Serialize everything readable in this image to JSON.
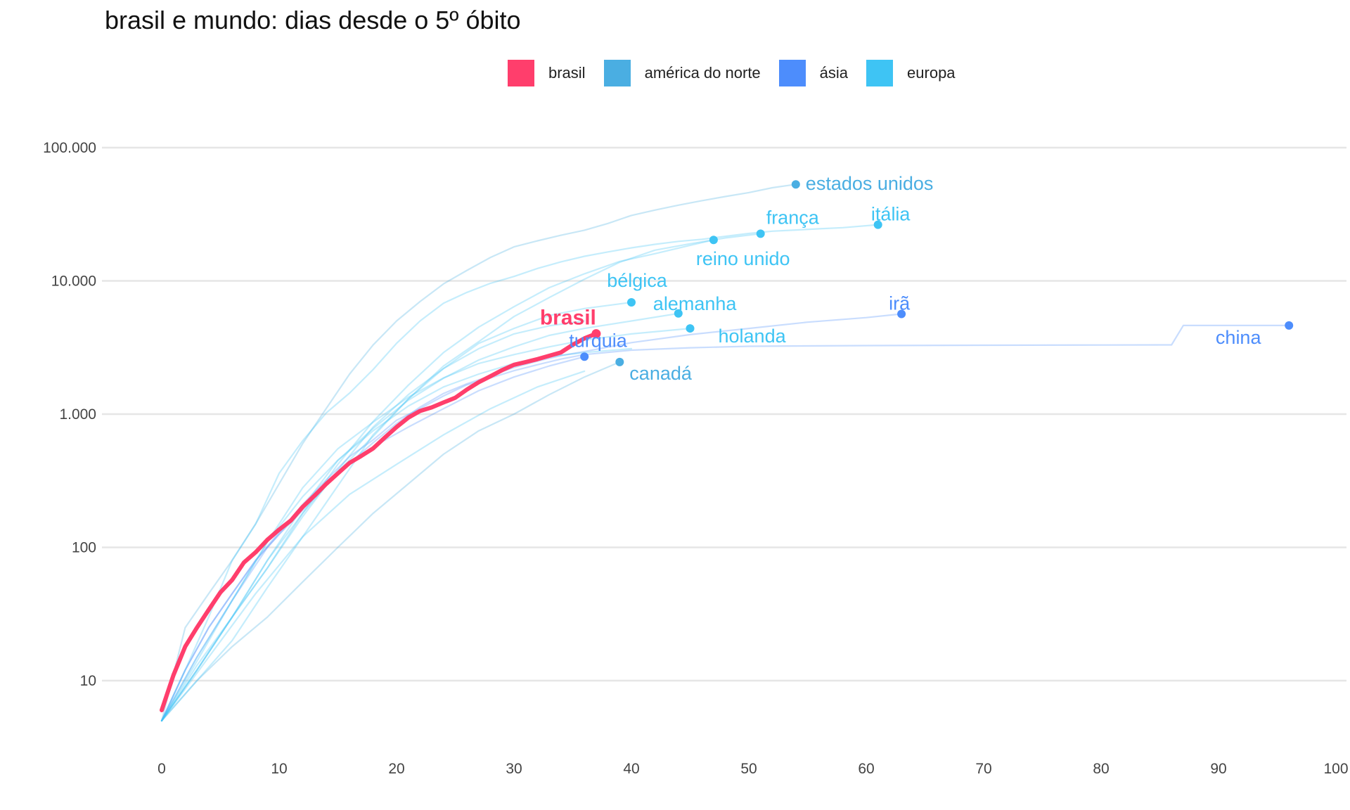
{
  "title": "brasil e mundo: dias desde o 5º óbito",
  "legend": [
    {
      "label": "brasil",
      "color": "#ff3e6c"
    },
    {
      "label": "américa do norte",
      "color": "#4aaee2"
    },
    {
      "label": "ásia",
      "color": "#4d8dfc"
    },
    {
      "label": "europa",
      "color": "#3ec4f4"
    }
  ],
  "chart_data": {
    "type": "line",
    "title": "brasil e mundo: dias desde o 5º óbito",
    "xlabel": "",
    "ylabel": "",
    "x_scale": "linear",
    "y_scale": "log10",
    "xlim": [
      0,
      100
    ],
    "ylim": [
      3.5,
      160000
    ],
    "x_ticks": [
      {
        "value": 0,
        "label": "0"
      },
      {
        "value": 10,
        "label": "10"
      },
      {
        "value": 20,
        "label": "20"
      },
      {
        "value": 30,
        "label": "30"
      },
      {
        "value": 40,
        "label": "40"
      },
      {
        "value": 50,
        "label": "50"
      },
      {
        "value": 60,
        "label": "60"
      },
      {
        "value": 70,
        "label": "70"
      },
      {
        "value": 80,
        "label": "80"
      },
      {
        "value": 90,
        "label": "90"
      },
      {
        "value": 100,
        "label": "100"
      }
    ],
    "y_ticks": [
      {
        "value": 10,
        "label": "10"
      },
      {
        "value": 100,
        "label": "100"
      },
      {
        "value": 1000,
        "label": "1.000"
      },
      {
        "value": 10000,
        "label": "10.000"
      },
      {
        "value": 100000,
        "label": "100.000"
      }
    ],
    "grid": "horizontal",
    "legend_position": "top",
    "series": [
      {
        "name": "brasil",
        "group": "brasil",
        "highlight": true,
        "x": [
          0,
          1,
          2,
          3,
          4,
          5,
          6,
          7,
          8,
          9,
          10,
          11,
          12,
          13,
          14,
          15,
          16,
          17,
          18,
          19,
          20,
          21,
          22,
          23,
          24,
          25,
          26,
          27,
          28,
          29,
          30,
          31,
          32,
          33,
          34,
          35,
          36,
          37
        ],
        "y": [
          6,
          11,
          18,
          25,
          34,
          46,
          57,
          77,
          92,
          114,
          136,
          159,
          201,
          244,
          299,
          359,
          431,
          486,
          553,
          667,
          800,
          941,
          1056,
          1124,
          1223,
          1328,
          1532,
          1736,
          1924,
          2141,
          2347,
          2462,
          2587,
          2741,
          2906,
          3313,
          3704,
          4016
        ],
        "end_label": "brasil"
      },
      {
        "name": "estados unidos",
        "group": "américa do norte",
        "x": [
          0,
          2,
          4,
          6,
          8,
          10,
          12,
          14,
          16,
          18,
          20,
          22,
          24,
          26,
          28,
          30,
          32,
          34,
          36,
          38,
          40,
          42,
          44,
          46,
          48,
          50,
          52,
          54
        ],
        "y": [
          5,
          25,
          45,
          80,
          150,
          300,
          600,
          1100,
          2000,
          3300,
          5000,
          7000,
          9500,
          12000,
          15000,
          18000,
          20000,
          22000,
          24000,
          27000,
          31000,
          34000,
          37000,
          40000,
          43000,
          46000,
          50000,
          53000
        ],
        "end_label": "estados unidos"
      },
      {
        "name": "canadá",
        "group": "américa do norte",
        "x": [
          0,
          3,
          6,
          9,
          12,
          15,
          18,
          21,
          24,
          27,
          30,
          33,
          36,
          39
        ],
        "y": [
          5,
          10,
          18,
          30,
          55,
          100,
          180,
          300,
          500,
          750,
          1000,
          1400,
          1900,
          2460
        ],
        "end_label": "canadá"
      },
      {
        "name": "china",
        "group": "ásia",
        "x": [
          0,
          2,
          4,
          6,
          8,
          10,
          12,
          14,
          16,
          18,
          20,
          22,
          24,
          26,
          28,
          30,
          32,
          34,
          36,
          40,
          45,
          50,
          60,
          70,
          80,
          86,
          87,
          96
        ],
        "y": [
          5,
          12,
          25,
          45,
          80,
          130,
          210,
          320,
          480,
          640,
          900,
          1100,
          1370,
          1660,
          1870,
          2120,
          2350,
          2590,
          2800,
          3020,
          3150,
          3230,
          3270,
          3290,
          3300,
          3310,
          4630,
          4630
        ],
        "end_label": "china"
      },
      {
        "name": "irã",
        "group": "ásia",
        "x": [
          0,
          2,
          4,
          6,
          8,
          10,
          12,
          14,
          16,
          18,
          20,
          22,
          24,
          26,
          28,
          30,
          32,
          34,
          36,
          40,
          45,
          50,
          55,
          60,
          63
        ],
        "y": [
          5,
          12,
          25,
          45,
          80,
          125,
          190,
          290,
          430,
          610,
          850,
          1130,
          1430,
          1690,
          1940,
          2240,
          2500,
          2750,
          2950,
          3440,
          3950,
          4400,
          4900,
          5300,
          5650
        ],
        "end_label": "irã"
      },
      {
        "name": "turquia",
        "group": "ásia",
        "x": [
          0,
          3,
          6,
          9,
          12,
          15,
          18,
          21,
          24,
          27,
          30,
          33,
          36
        ],
        "y": [
          5,
          15,
          40,
          100,
          200,
          360,
          570,
          800,
          1100,
          1500,
          1900,
          2300,
          2700
        ],
        "end_label": "turquia"
      },
      {
        "name": "itália",
        "group": "europa",
        "x": [
          0,
          2,
          4,
          6,
          8,
          10,
          12,
          14,
          16,
          18,
          20,
          22,
          24,
          26,
          28,
          30,
          32,
          34,
          36,
          38,
          40,
          42,
          44,
          46,
          48,
          50,
          52,
          54,
          56,
          58,
          61
        ],
        "y": [
          5,
          12,
          30,
          80,
          150,
          360,
          630,
          1020,
          1440,
          2160,
          3400,
          5000,
          6800,
          8200,
          9600,
          10800,
          12400,
          13900,
          15300,
          16500,
          17700,
          18800,
          19800,
          20500,
          21600,
          22700,
          23600,
          24100,
          24600,
          25100,
          26400
        ],
        "end_label": "itália"
      },
      {
        "name": "frança",
        "group": "europa",
        "x": [
          0,
          3,
          6,
          9,
          12,
          15,
          18,
          21,
          24,
          27,
          30,
          33,
          36,
          39,
          42,
          45,
          48,
          51
        ],
        "y": [
          5,
          12,
          30,
          80,
          180,
          370,
          680,
          1300,
          2300,
          3500,
          5400,
          7500,
          10300,
          13800,
          17000,
          19000,
          21000,
          22600
        ],
        "end_label": "frança"
      },
      {
        "name": "reino unido",
        "group": "europa",
        "x": [
          0,
          3,
          6,
          9,
          12,
          15,
          18,
          21,
          24,
          27,
          30,
          33,
          36,
          39,
          42,
          45,
          47
        ],
        "y": [
          5,
          12,
          30,
          70,
          180,
          420,
          880,
          1650,
          2900,
          4500,
          6400,
          8900,
          11300,
          14000,
          16000,
          18500,
          20300
        ],
        "end_label": "reino unido"
      },
      {
        "name": "bélgica",
        "group": "europa",
        "x": [
          0,
          3,
          6,
          9,
          12,
          15,
          18,
          21,
          24,
          27,
          30,
          33,
          36,
          40
        ],
        "y": [
          5,
          10,
          20,
          50,
          120,
          290,
          700,
          1300,
          2200,
          3400,
          4400,
          5500,
          6200,
          6900
        ],
        "end_label": "bélgica"
      },
      {
        "name": "alemanha",
        "group": "europa",
        "x": [
          0,
          3,
          6,
          9,
          12,
          15,
          18,
          21,
          24,
          27,
          30,
          33,
          36,
          40,
          44
        ],
        "y": [
          5,
          12,
          30,
          80,
          200,
          450,
          780,
          1270,
          1860,
          2550,
          3200,
          3900,
          4400,
          5000,
          5700
        ],
        "end_label": "alemanha"
      },
      {
        "name": "holanda",
        "group": "europa",
        "x": [
          0,
          3,
          6,
          9,
          12,
          15,
          18,
          21,
          24,
          27,
          30,
          33,
          36,
          40,
          45
        ],
        "y": [
          5,
          15,
          40,
          110,
          280,
          550,
          870,
          1340,
          1870,
          2400,
          2800,
          3200,
          3600,
          4000,
          4400
        ],
        "end_label": "holanda"
      },
      {
        "name": "",
        "group": "europa",
        "x": [
          0,
          3,
          6,
          9,
          12,
          15,
          18,
          21,
          24,
          27,
          30,
          33,
          36,
          40
        ],
        "y": [
          5,
          14,
          40,
          110,
          240,
          450,
          750,
          1150,
          1600,
          2000,
          2400,
          2700,
          2900,
          3100
        ]
      },
      {
        "name": "",
        "group": "europa",
        "x": [
          0,
          3,
          6,
          9,
          12,
          15,
          18,
          21,
          24,
          27,
          30,
          33,
          36
        ],
        "y": [
          5,
          13,
          30,
          70,
          170,
          380,
          800,
          1400,
          2200,
          3100,
          4000,
          4600,
          5000
        ]
      },
      {
        "name": "",
        "group": "europa",
        "x": [
          0,
          4,
          8,
          12,
          16,
          20,
          24,
          28,
          32,
          36
        ],
        "y": [
          5,
          15,
          45,
          120,
          250,
          420,
          700,
          1100,
          1600,
          2100
        ]
      }
    ],
    "labels": [
      {
        "text": "brasil",
        "series": "brasil",
        "anchor": "end",
        "offset": "above-left"
      },
      {
        "text": "estados unidos",
        "series": "estados unidos",
        "offset": "right"
      },
      {
        "text": "frança",
        "series": "frança",
        "offset": "above-right"
      },
      {
        "text": "itália",
        "series": "itália",
        "offset": "above"
      },
      {
        "text": "reino unido",
        "series": "reino unido",
        "offset": "below-right"
      },
      {
        "text": "bélgica",
        "series": "bélgica",
        "offset": "above-left"
      },
      {
        "text": "alemanha",
        "series": "alemanha",
        "offset": "above-right"
      },
      {
        "text": "irã",
        "series": "irã",
        "offset": "above"
      },
      {
        "text": "turquia",
        "series": "turquia",
        "offset": "above-right"
      },
      {
        "text": "holanda",
        "series": "holanda",
        "offset": "below-right"
      },
      {
        "text": "canadá",
        "series": "canadá",
        "offset": "below-right"
      },
      {
        "text": "china",
        "series": "china",
        "offset": "below-left"
      }
    ]
  }
}
